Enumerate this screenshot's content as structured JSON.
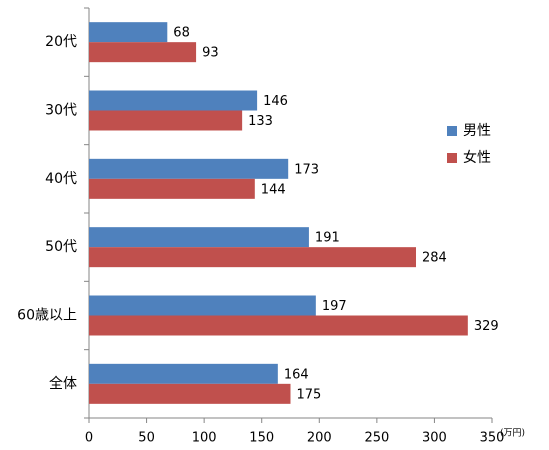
{
  "chart_data": {
    "type": "bar",
    "orientation": "horizontal",
    "categories": [
      "20代",
      "30代",
      "40代",
      "50代",
      "60歳以上",
      "全体"
    ],
    "series": [
      {
        "name": "男性",
        "color": "#4f81bd",
        "values": [
          68,
          146,
          173,
          191,
          197,
          164
        ]
      },
      {
        "name": "女性",
        "color": "#c0504d",
        "values": [
          93,
          133,
          144,
          284,
          329,
          175
        ]
      }
    ],
    "xlim": [
      0,
      350
    ],
    "xticks": [
      0,
      50,
      100,
      150,
      200,
      250,
      300,
      350
    ],
    "x_unit_label": "(万円)",
    "legend": "right",
    "data_labels": true
  }
}
